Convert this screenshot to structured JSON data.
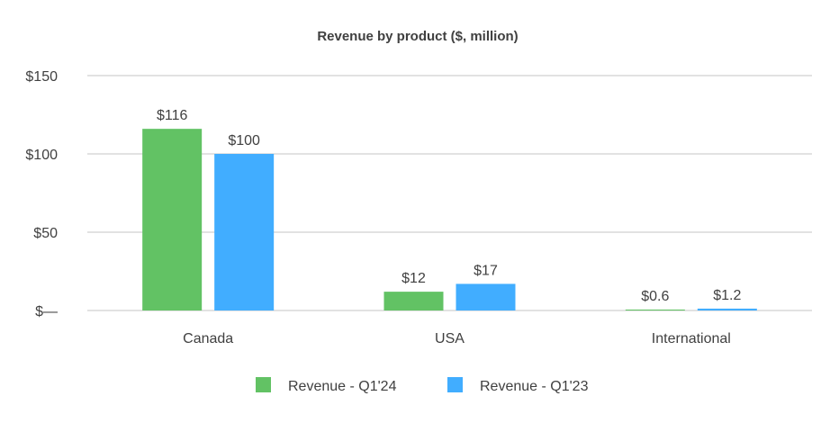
{
  "chart_data": {
    "type": "bar",
    "title": "Revenue by product ($, million)",
    "xlabel": "",
    "ylabel": "",
    "categories": [
      "Canada",
      "USA",
      "International"
    ],
    "series": [
      {
        "name": "Revenue - Q1'24",
        "color": "#62c264",
        "values": [
          116,
          12,
          0.6
        ],
        "labels": [
          "$116",
          "$12",
          "$0.6"
        ]
      },
      {
        "name": "Revenue - Q1'23",
        "color": "#41adff",
        "values": [
          100,
          17,
          1.2
        ],
        "labels": [
          "$100",
          "$17",
          "$1.2"
        ]
      }
    ],
    "ylim": [
      0,
      150
    ],
    "yticks": [
      0,
      50,
      100,
      150
    ],
    "ytick_labels": [
      "$—",
      "$50",
      "$100",
      "$150"
    ],
    "grid": true,
    "legend_position": "bottom-center",
    "gridline_color": "#d9d9d9",
    "text_color": "#404040"
  }
}
